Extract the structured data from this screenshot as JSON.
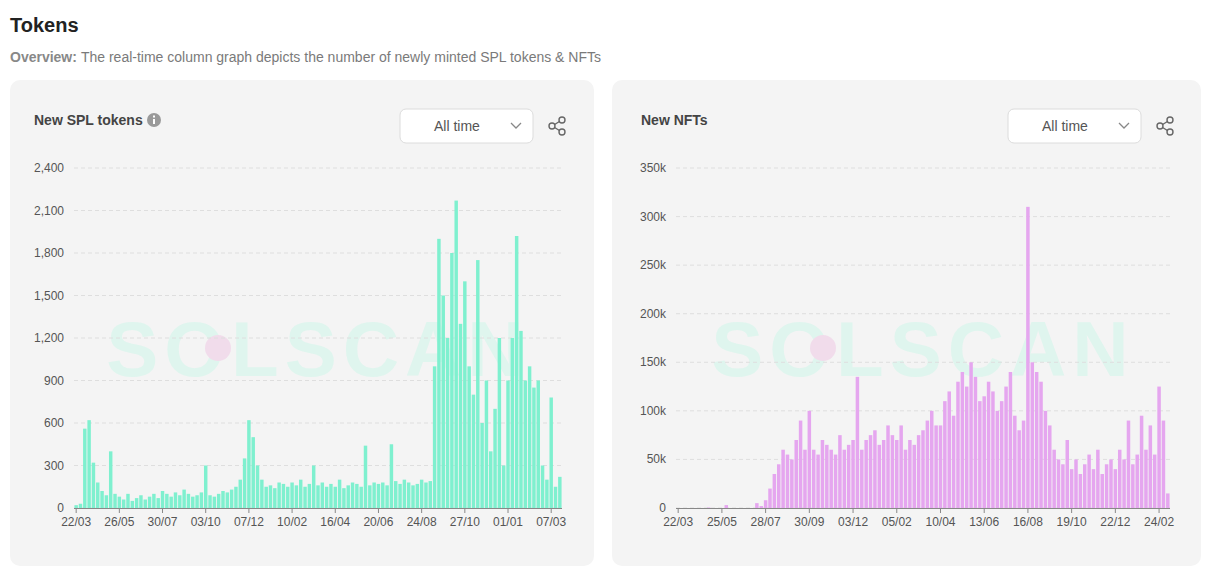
{
  "header": {
    "title": "Tokens",
    "overview_label": "Overview:",
    "overview_text": "The real-time column graph depicts the number of newly minted SPL tokens & NFTs"
  },
  "panels": [
    {
      "dropdown": "All time",
      "watermark": "SOLSCAN"
    },
    {
      "dropdown": "All time",
      "watermark": "SOLSCAN"
    }
  ],
  "chart_data": [
    {
      "type": "bar",
      "title": "New SPL tokens",
      "color": "#7ff0cf",
      "grid": true,
      "ylim": [
        0,
        2400
      ],
      "yticks": [
        0,
        300,
        600,
        900,
        {
          "value": 1200,
          "label": "1,200"
        },
        {
          "value": 1500,
          "label": "1,500"
        },
        {
          "value": 1800,
          "label": "1,800"
        },
        {
          "value": 2100,
          "label": "2,100"
        },
        {
          "value": 2400,
          "label": "2,400"
        }
      ],
      "categories": [
        "22/03",
        null,
        null,
        null,
        null,
        null,
        null,
        null,
        null,
        null,
        "26/05",
        null,
        null,
        null,
        null,
        null,
        null,
        null,
        null,
        null,
        "30/07",
        null,
        null,
        null,
        null,
        null,
        null,
        null,
        null,
        null,
        "03/10",
        null,
        null,
        null,
        null,
        null,
        null,
        null,
        null,
        null,
        "07/12",
        null,
        null,
        null,
        null,
        null,
        null,
        null,
        null,
        null,
        "10/02",
        null,
        null,
        null,
        null,
        null,
        null,
        null,
        null,
        null,
        "16/04",
        null,
        null,
        null,
        null,
        null,
        null,
        null,
        null,
        null,
        "20/06",
        null,
        null,
        null,
        null,
        null,
        null,
        null,
        null,
        null,
        "24/08",
        null,
        null,
        null,
        null,
        null,
        null,
        null,
        null,
        null,
        "27/10",
        null,
        null,
        null,
        null,
        null,
        null,
        null,
        null,
        null,
        "01/01",
        null,
        null,
        null,
        null,
        null,
        null,
        null,
        null,
        null,
        "07/03",
        null,
        null
      ],
      "values": [
        20,
        30,
        560,
        620,
        320,
        180,
        120,
        90,
        400,
        100,
        80,
        60,
        100,
        50,
        70,
        90,
        60,
        80,
        100,
        70,
        120,
        100,
        80,
        110,
        90,
        130,
        100,
        80,
        90,
        110,
        300,
        90,
        80,
        100,
        120,
        110,
        130,
        150,
        200,
        350,
        620,
        500,
        300,
        200,
        150,
        160,
        140,
        180,
        170,
        150,
        180,
        160,
        200,
        150,
        170,
        300,
        160,
        180,
        150,
        170,
        150,
        200,
        140,
        160,
        180,
        170,
        150,
        440,
        160,
        180,
        170,
        180,
        160,
        450,
        190,
        170,
        200,
        180,
        160,
        170,
        200,
        180,
        190,
        1000,
        1900,
        1500,
        1200,
        1800,
        2170,
        1300,
        1600,
        1000,
        800,
        1750,
        600,
        900,
        400,
        700,
        1200,
        300,
        900,
        1200,
        1920,
        1250,
        900,
        1000,
        850,
        900,
        300,
        200,
        780,
        150,
        220
      ]
    },
    {
      "type": "bar",
      "title": "New NFTs",
      "color": "#e5a6ef",
      "grid": true,
      "ylim": [
        0,
        350000
      ],
      "yticks": [
        0,
        {
          "value": 50000,
          "label": "50k"
        },
        {
          "value": 100000,
          "label": "100k"
        },
        {
          "value": 150000,
          "label": "150k"
        },
        {
          "value": 200000,
          "label": "200k"
        },
        {
          "value": 250000,
          "label": "250k"
        },
        {
          "value": 300000,
          "label": "300k"
        },
        {
          "value": 350000,
          "label": "350k"
        }
      ],
      "categories": [
        "22/03",
        null,
        null,
        null,
        null,
        null,
        null,
        null,
        null,
        null,
        "25/05",
        null,
        null,
        null,
        null,
        null,
        null,
        null,
        null,
        null,
        "28/07",
        null,
        null,
        null,
        null,
        null,
        null,
        null,
        null,
        null,
        "30/09",
        null,
        null,
        null,
        null,
        null,
        null,
        null,
        null,
        null,
        "03/12",
        null,
        null,
        null,
        null,
        null,
        null,
        null,
        null,
        null,
        "05/02",
        null,
        null,
        null,
        null,
        null,
        null,
        null,
        null,
        null,
        "10/04",
        null,
        null,
        null,
        null,
        null,
        null,
        null,
        null,
        null,
        "13/06",
        null,
        null,
        null,
        null,
        null,
        null,
        null,
        null,
        null,
        "16/08",
        null,
        null,
        null,
        null,
        null,
        null,
        null,
        null,
        null,
        "19/10",
        null,
        null,
        null,
        null,
        null,
        null,
        null,
        null,
        null,
        "22/12",
        null,
        null,
        null,
        null,
        null,
        null,
        null,
        null,
        null,
        "24/02",
        null,
        null
      ],
      "values": [
        0,
        0,
        0,
        0,
        0,
        0,
        0,
        500,
        0,
        0,
        0,
        3000,
        0,
        0,
        0,
        0,
        0,
        0,
        5000,
        2000,
        8000,
        20000,
        35000,
        45000,
        60000,
        55000,
        50000,
        70000,
        90000,
        60000,
        100000,
        60000,
        55000,
        70000,
        65000,
        60000,
        55000,
        75000,
        60000,
        65000,
        70000,
        135000,
        60000,
        70000,
        75000,
        80000,
        65000,
        70000,
        85000,
        75000,
        70000,
        85000,
        60000,
        70000,
        65000,
        75000,
        80000,
        90000,
        100000,
        85000,
        85000,
        110000,
        120000,
        95000,
        130000,
        140000,
        125000,
        150000,
        135000,
        110000,
        115000,
        130000,
        120000,
        100000,
        110000,
        125000,
        140000,
        95000,
        80000,
        90000,
        310000,
        150000,
        140000,
        130000,
        100000,
        85000,
        60000,
        50000,
        45000,
        70000,
        40000,
        50000,
        35000,
        45000,
        55000,
        40000,
        60000,
        35000,
        45000,
        50000,
        40000,
        60000,
        50000,
        90000,
        45000,
        55000,
        95000,
        60000,
        85000,
        55000,
        125000,
        90000,
        15000
      ]
    }
  ]
}
